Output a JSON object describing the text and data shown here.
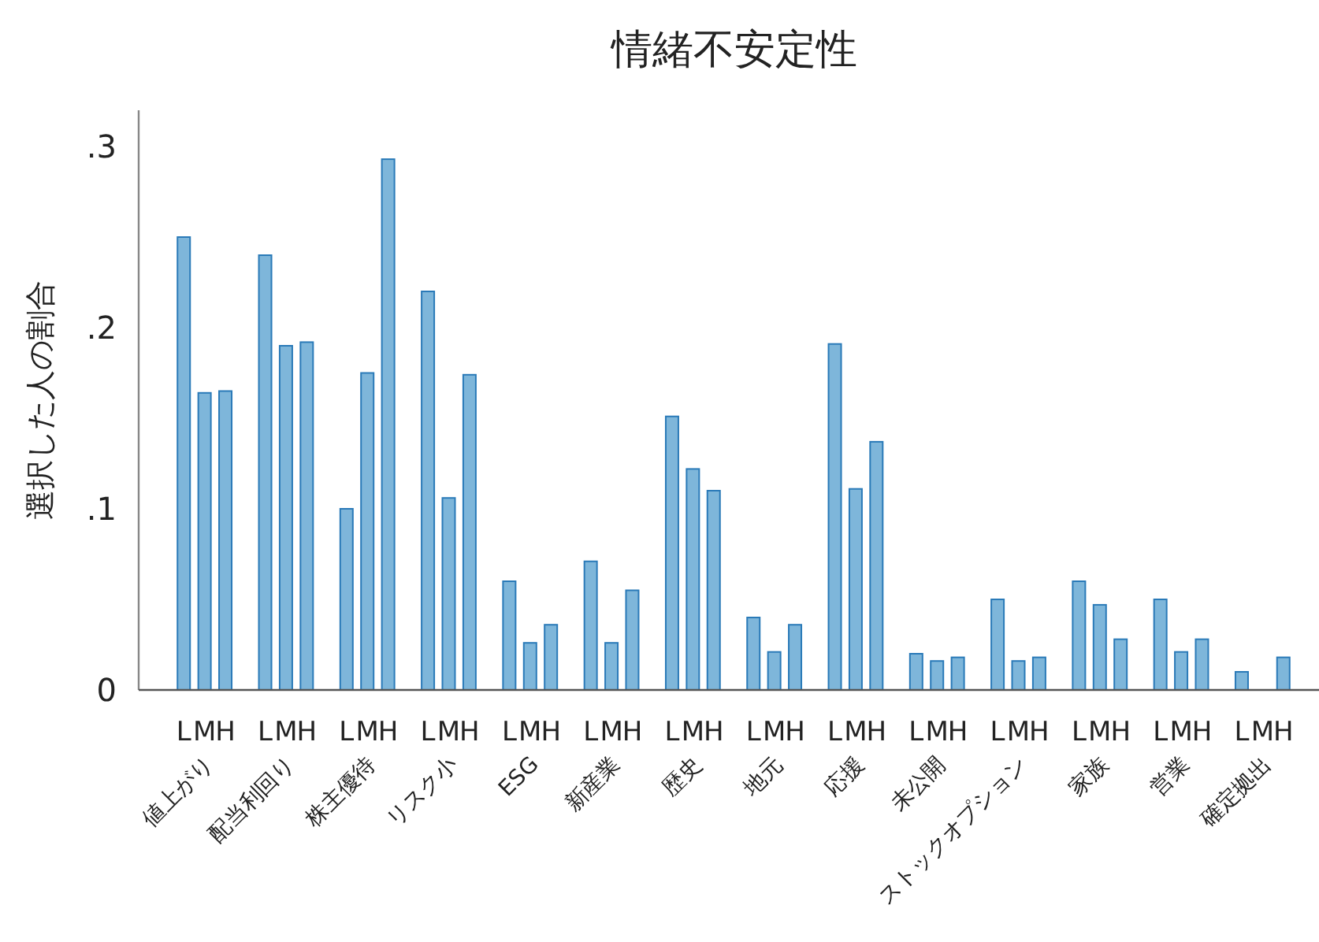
{
  "chart_data": {
    "type": "bar",
    "title": "情緒不安定性",
    "ylabel": "選択した人の割合",
    "categories": [
      "値上がり",
      "配当利回り",
      "株主優待",
      "リスク小",
      "ESG",
      "新産業",
      "歴史",
      "地元",
      "応援",
      "未公開",
      "ストックオプション",
      "家族",
      "営業",
      "確定拠出"
    ],
    "series": [
      {
        "name": "L",
        "color": "#7eb6da",
        "values": [
          0.25,
          0.24,
          0.1,
          0.22,
          0.06,
          0.071,
          0.151,
          0.04,
          0.191,
          0.02,
          0.05,
          0.06,
          0.05,
          0.01
        ]
      },
      {
        "name": "M",
        "color": "#7eb6da",
        "values": [
          0.164,
          0.19,
          0.175,
          0.106,
          0.026,
          0.026,
          0.122,
          0.021,
          0.111,
          0.016,
          0.016,
          0.047,
          0.021,
          0
        ]
      },
      {
        "name": "H",
        "color": "#7eb6da",
        "values": [
          0.165,
          0.192,
          0.293,
          0.174,
          0.036,
          0.055,
          0.11,
          0.036,
          0.137,
          0.018,
          0.018,
          0.028,
          0.028,
          0.018
        ]
      }
    ],
    "ylim": [
      0,
      0.32
    ],
    "yticks": [
      {
        "value": 0,
        "label": "0"
      },
      {
        "value": 0.1,
        "label": ".1"
      },
      {
        "value": 0.2,
        "label": ".2"
      },
      {
        "value": 0.3,
        "label": ".3"
      }
    ],
    "grid": false,
    "legend": false
  }
}
